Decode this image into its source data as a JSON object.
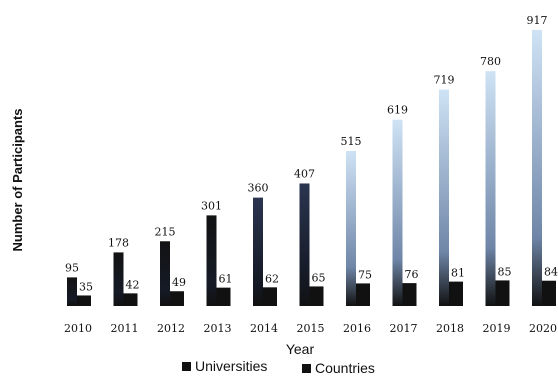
{
  "chart_data": {
    "type": "bar",
    "categories": [
      "2010",
      "2011",
      "2012",
      "2013",
      "2014",
      "2015",
      "2016",
      "2017",
      "2018",
      "2019",
      "2020"
    ],
    "series": [
      {
        "name": "Universities",
        "values": [
          95,
          178,
          215,
          301,
          360,
          407,
          515,
          619,
          719,
          780,
          917
        ]
      },
      {
        "name": "Countries",
        "values": [
          35,
          42,
          49,
          61,
          62,
          65,
          75,
          76,
          81,
          85,
          84
        ]
      }
    ],
    "value_labels": {
      "Universities": [
        "95",
        "178",
        "215",
        "301",
        "360",
        "407",
        "515",
        "619",
        "719",
        "780",
        "917"
      ],
      "Countries": [
        "35",
        "42",
        "49",
        "61",
        "62",
        "65",
        "75",
        "76",
        "81",
        "85",
        "84"
      ]
    },
    "xlabel": "Year",
    "ylabel": "Number of Participants",
    "ylim": [
      0,
      950
    ],
    "legend_position": "bottom",
    "colors": {
      "dark": "#111111",
      "light_top": "#c9dff2",
      "mid": "#27324a"
    }
  }
}
